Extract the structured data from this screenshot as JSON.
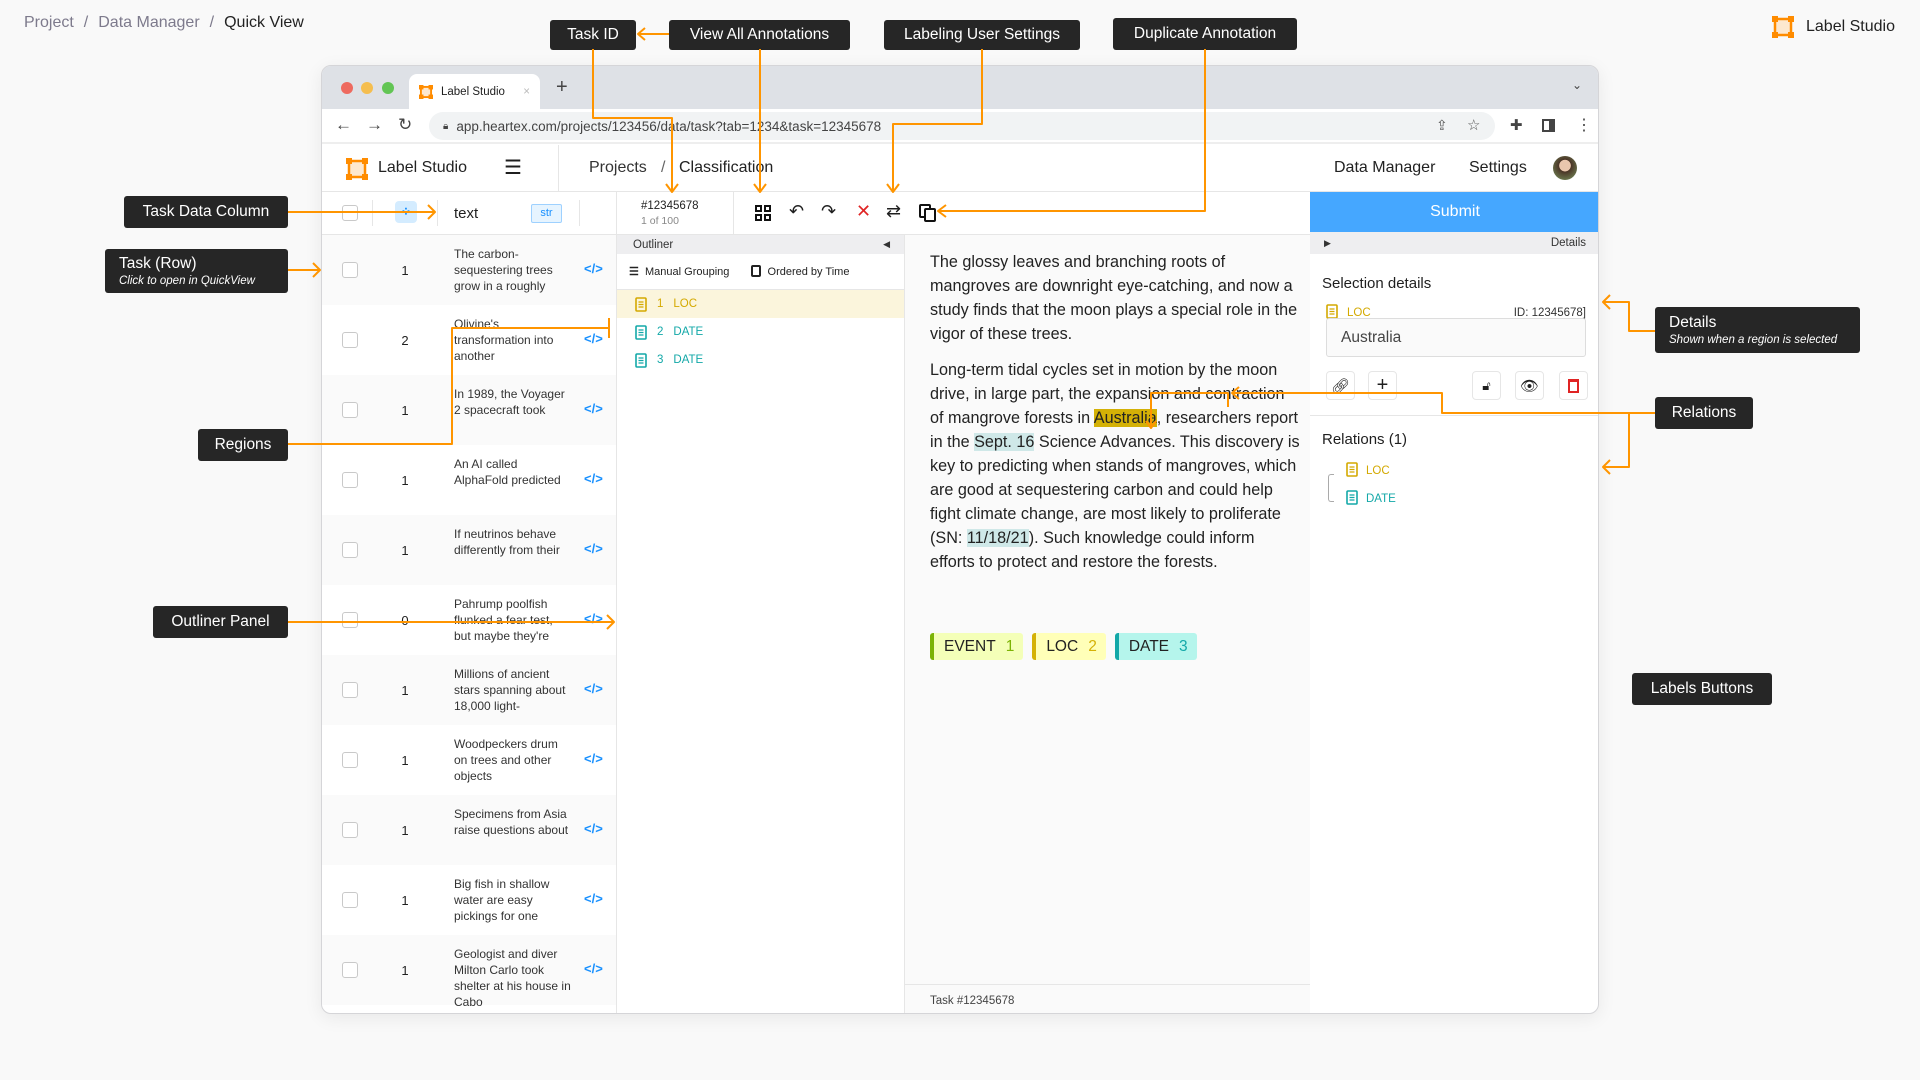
{
  "breadcrumb": [
    "Project",
    "Data Manager",
    "Quick View"
  ],
  "brand": {
    "name": "Label Studio",
    "accent": "#ff8c00"
  },
  "callouts": {
    "task_id": "Task ID",
    "view_all": "View All Annotations",
    "user_settings": "Labeling User Settings",
    "duplicate": "Duplicate Annotation",
    "task_data_column": "Task Data Column",
    "task_row": "Task (Row)",
    "task_row_sub": "Click to open in QuickView",
    "regions": "Regions",
    "outliner": "Outliner Panel",
    "details": "Details",
    "details_sub": "Shown when a region is selected",
    "relations": "Relations",
    "labels_buttons": "Labels Buttons"
  },
  "browser": {
    "tab_title": "Label Studio",
    "url": "app.heartex.com/projects/123456/data/task?tab=1234&task=12345678"
  },
  "app": {
    "name": "Label Studio",
    "breadcrumb": [
      "Projects",
      "Classification"
    ],
    "nav": [
      "Data Manager",
      "Settings"
    ]
  },
  "table": {
    "column": "text",
    "type_badge": "str",
    "rows": [
      {
        "count": "1",
        "text": "The carbon-sequestering trees grow in a roughly"
      },
      {
        "count": "2",
        "text": "Olivine's transformation into another"
      },
      {
        "count": "1",
        "text": "In 1989, the Voyager 2 spacecraft took"
      },
      {
        "count": "1",
        "text": "An AI called AlphaFold predicted"
      },
      {
        "count": "1",
        "text": "If neutrinos behave differently from their"
      },
      {
        "count": "0",
        "text": "Pahrump poolfish flunked a fear test, but maybe they're"
      },
      {
        "count": "1",
        "text": "Millions of ancient stars spanning about 18,000 light-"
      },
      {
        "count": "1",
        "text": "Woodpeckers drum on trees and other objects"
      },
      {
        "count": "1",
        "text": "Specimens from Asia raise questions about"
      },
      {
        "count": "1",
        "text": "Big fish in shallow water are easy pickings for one"
      },
      {
        "count": "1",
        "text": "Geologist and diver Milton Carlo took shelter at his house in Cabo"
      }
    ]
  },
  "toolbar": {
    "task_id": "#12345678",
    "position": "1 of 100"
  },
  "outliner": {
    "title": "Outliner",
    "grouping": "Manual Grouping",
    "ordering": "Ordered by Time",
    "regions": [
      {
        "index": "1",
        "label": "LOC",
        "color": "#d4a900",
        "selected": true
      },
      {
        "index": "2",
        "label": "DATE",
        "color": "#13a8a8"
      },
      {
        "index": "3",
        "label": "DATE",
        "color": "#13a8a8"
      }
    ]
  },
  "document": {
    "p1": "The glossy leaves and branching roots of mangroves are downright eye-catching, and now a study finds that the moon plays a special role in the vigor of these trees.",
    "p2a": "Long-term tidal cycles set in motion by the moon drive, in large part, the expansion and contraction of mangrove forests in ",
    "p2_loc": "Australia",
    "p2b": ", researchers report in the ",
    "p2_date": "Sept. 16",
    "p2c": " Science Advances. This discovery is key to predicting when stands of mangroves, which are good at sequestering carbon and could help fight climate change, are most likely to proliferate (SN: ",
    "p2_date2": "11/18/21",
    "p2d": "). Such knowledge could inform efforts to protect and restore the forests.",
    "footer": "Task #12345678"
  },
  "labels": [
    {
      "name": "EVENT",
      "hotkey": "1",
      "color": "#7cb305",
      "bg": "#f4ffb8"
    },
    {
      "name": "LOC",
      "hotkey": "2",
      "color": "#d4b106",
      "bg": "#ffffb8"
    },
    {
      "name": "DATE",
      "hotkey": "3",
      "color": "#13a8a8",
      "bg": "#b5f5ec"
    }
  ],
  "panel": {
    "submit": "Submit",
    "details_tab": "Details",
    "selection_title": "Selection details",
    "region_label": "LOC",
    "region_id": "ID: 12345678]",
    "region_text": "Australia",
    "relations_title": "Relations (1)",
    "relation_from": "LOC",
    "relation_to": "DATE",
    "submit_color": "#45a7ff"
  }
}
